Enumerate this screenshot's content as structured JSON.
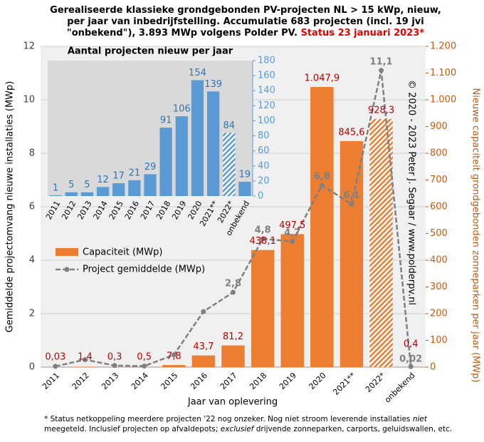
{
  "chart_data": [
    {
      "type": "bar_line",
      "title": [
        "Gerealiseerde klassieke grondgebonden PV-projecten NL > 15 kWp, nieuw,",
        "per jaar van inbedrijfstelling. Accumulatie 683 projecten (incl. 19 jvi",
        "\"onbekend\"), 3.893 MWp volgens Polder PV."
      ],
      "title_status": "Status 23 januari 2023*",
      "x_label": "Jaar van oplevering",
      "y_label": "Gemiddelde projectomvang nieuwe installaties (MWp)",
      "y2_label": "Nieuwe capaciteit grondgebonden zonneparken per jaar (MWp)",
      "copyright": "© 2020 - 2023 Peter J. Segaar / www.polderpv.nl",
      "categories": [
        "2011",
        "2012",
        "2013",
        "2014",
        "2015",
        "2016",
        "2017",
        "2018",
        "2019",
        "2020",
        "2021**",
        "2022*",
        "onbekend"
      ],
      "series": [
        {
          "name": "Capaciteit (MWp)",
          "color": "#ed7d31",
          "kind": "bar",
          "axis": "y2",
          "patterns": [
            "solid",
            "solid",
            "solid",
            "solid",
            "solid",
            "solid",
            "solid",
            "solid",
            "solid",
            "solid",
            "solid",
            "hatched",
            "solid"
          ],
          "values": [
            0.03,
            1.4,
            0.3,
            0.5,
            7.8,
            43.7,
            81.2,
            438.1,
            497.5,
            1047.9,
            845.6,
            928.3,
            0.4
          ],
          "value_labels": [
            "0,03",
            "1,4",
            "0,3",
            "0,5",
            "7,8",
            "43,7",
            "81,2",
            "438,1",
            "497,5",
            "1.047,9",
            "845,6",
            "928,3",
            "0,4"
          ],
          "label_color": "#c00000"
        },
        {
          "name": "Project gemiddelde (MWp)",
          "color": "#808080",
          "kind": "line",
          "axis": "y",
          "values": [
            0.03,
            0.28,
            0.06,
            0.04,
            0.46,
            2.08,
            2.8,
            4.8,
            4.7,
            6.8,
            6.1,
            11.1,
            0.02
          ],
          "value_labels": [
            null,
            null,
            null,
            null,
            null,
            null,
            "2,8",
            "4,8",
            "4,7",
            "6,8",
            "6,1",
            "11,1",
            "0,02"
          ],
          "label_color": "#808080"
        }
      ],
      "ylim": [
        0,
        12
      ],
      "yticks": [
        0,
        2,
        4,
        6,
        8,
        10,
        12
      ],
      "y2lim": [
        0,
        1200
      ],
      "y2ticks": [
        0,
        100,
        200,
        300,
        400,
        500,
        600,
        700,
        800,
        900,
        {
          "value": 1000,
          "label": "1.000"
        },
        {
          "value": 1100,
          "label": "1.100"
        },
        {
          "value": 1200,
          "label": "1.200"
        }
      ],
      "y2_color": "#c55a11",
      "footnote": [
        [
          "* Status netkoppeling meerdere projecten '22 nog onzeker. Nog niet stroom leverende installaties ",
          "niet"
        ],
        [
          "meegeteld. Inclusief projecten op afvaldepots; ",
          "exclusief",
          " drijvende zonneparken, carports, geluidswallen, etc."
        ]
      ]
    },
    {
      "type": "bar",
      "title": "Aantal projecten nieuw per jaar",
      "categories": [
        "2011",
        "2012",
        "2013",
        "2014",
        "2015",
        "2016",
        "2017",
        "2018",
        "2019",
        "2020",
        "2021**",
        "2022*",
        "onbekend"
      ],
      "values": [
        1,
        5,
        5,
        12,
        17,
        21,
        29,
        91,
        106,
        154,
        139,
        84,
        19
      ],
      "patterns": [
        "solid",
        "solid",
        "solid",
        "solid",
        "solid",
        "solid",
        "solid",
        "solid",
        "solid",
        "solid",
        "solid",
        "hatched",
        "solid"
      ],
      "color": "#5b9bd5",
      "ylim": [
        0,
        180
      ],
      "yticks": [
        0,
        20,
        40,
        60,
        80,
        100,
        120,
        140,
        160,
        180
      ]
    }
  ]
}
